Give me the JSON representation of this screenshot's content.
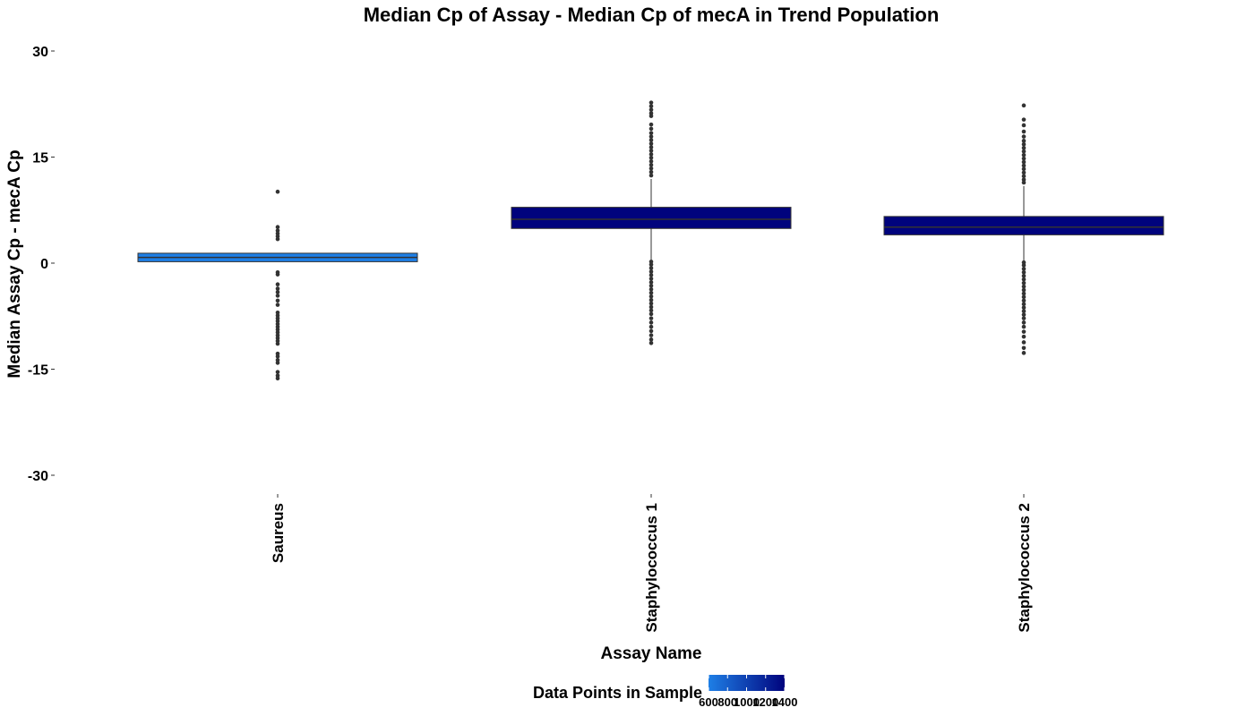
{
  "chart_data": {
    "type": "box",
    "title": "Median Cp of Assay - Median Cp of mecA in Trend Population",
    "xlabel": "Assay Name",
    "ylabel": "Median Assay Cp - mecA Cp",
    "ylim": [
      -33,
      30
    ],
    "yticks": [
      30,
      15,
      0,
      -15,
      -30
    ],
    "ytick_labels": [
      "30",
      "15",
      "0",
      "-15",
      "-30"
    ],
    "grid": false,
    "categories": [
      "Saureus",
      "Staphylococcus 1",
      "Staphylococcus 2"
    ],
    "boxes": [
      {
        "category": "Saureus",
        "q1": 0.2,
        "median": 0.8,
        "q3": 1.4,
        "whisker_low": 0.2,
        "whisker_high": 1.4,
        "data_points": 600,
        "fill": "#1e7fe6",
        "outliers": [
          10.1,
          5.1,
          4.6,
          4.2,
          3.8,
          3.4,
          -1.3,
          -1.6,
          -3.0,
          -3.6,
          -4.1,
          -4.6,
          -5.3,
          -5.9,
          -7.0,
          -7.4,
          -7.8,
          -8.2,
          -8.6,
          -9.0,
          -9.4,
          -9.8,
          -10.2,
          -10.6,
          -11.0,
          -11.4,
          -12.8,
          -13.2,
          -13.7,
          -14.1,
          -15.4,
          -15.9,
          -16.3
        ]
      },
      {
        "category": "Staphylococcus 1",
        "q1": 4.9,
        "median": 6.2,
        "q3": 7.9,
        "whisker_low": 0.4,
        "whisker_high": 11.9,
        "data_points": 1400,
        "fill": "#00037d",
        "outliers": [
          22.7,
          22.2,
          21.7,
          21.2,
          20.8,
          19.6,
          19.0,
          18.4,
          17.9,
          17.4,
          16.9,
          16.4,
          15.9,
          15.4,
          14.9,
          14.4,
          13.9,
          13.4,
          12.9,
          12.4,
          0.2,
          -0.2,
          -0.7,
          -1.2,
          -1.7,
          -2.2,
          -2.7,
          -3.2,
          -3.7,
          -4.2,
          -4.7,
          -5.2,
          -5.7,
          -6.2,
          -6.7,
          -7.2,
          -7.8,
          -8.4,
          -9.0,
          -9.6,
          -10.2,
          -10.8,
          -11.3
        ]
      },
      {
        "category": "Staphylococcus 2",
        "q1": 4.0,
        "median": 5.1,
        "q3": 6.6,
        "whisker_low": 0.3,
        "whisker_high": 10.9,
        "data_points": 1400,
        "fill": "#00037d",
        "outliers": [
          22.3,
          20.3,
          19.5,
          18.6,
          17.9,
          17.3,
          16.8,
          16.3,
          15.8,
          15.3,
          14.8,
          14.3,
          13.8,
          13.3,
          12.8,
          12.3,
          11.8,
          11.4,
          0.1,
          -0.3,
          -0.8,
          -1.3,
          -1.8,
          -2.3,
          -2.8,
          -3.3,
          -3.8,
          -4.3,
          -4.8,
          -5.3,
          -5.8,
          -6.3,
          -6.8,
          -7.3,
          -7.8,
          -8.4,
          -9.0,
          -9.7,
          -10.4,
          -11.2,
          -12.0,
          -12.7
        ]
      }
    ],
    "legend": {
      "title": "Data Points in Sample",
      "placement": "bottom",
      "range": [
        600,
        1400
      ],
      "ticks": [
        600,
        800,
        1000,
        1200,
        1400
      ],
      "tick_labels": [
        "600",
        "800",
        "1000",
        "1200",
        "1400"
      ],
      "color_low": "#1e7fe6",
      "color_high": "#00037d"
    }
  }
}
